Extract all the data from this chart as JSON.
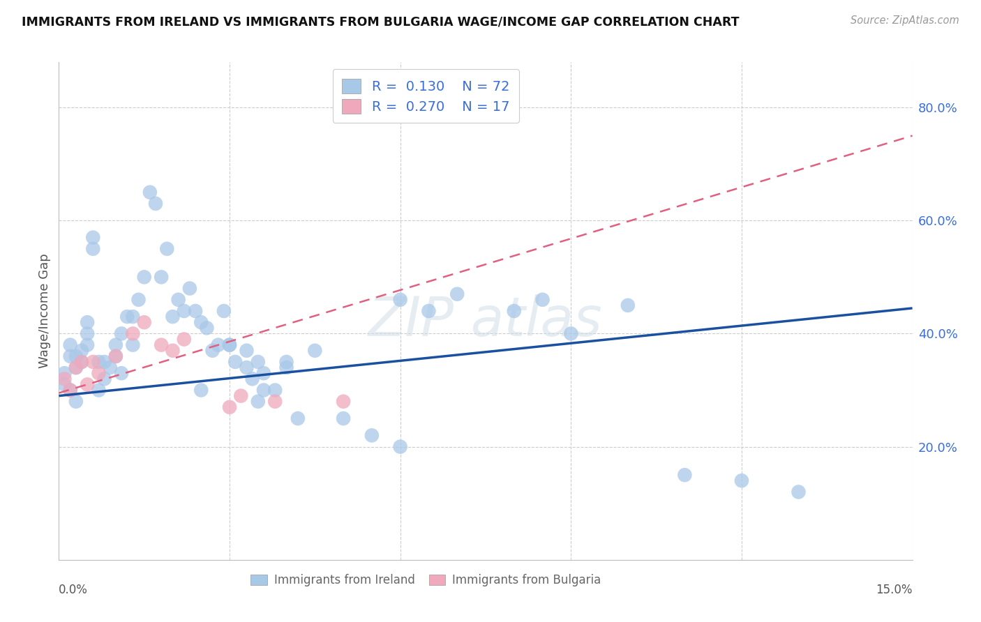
{
  "title": "IMMIGRANTS FROM IRELAND VS IMMIGRANTS FROM BULGARIA WAGE/INCOME GAP CORRELATION CHART",
  "source": "Source: ZipAtlas.com",
  "ylabel": "Wage/Income Gap",
  "yticks": [
    0.2,
    0.4,
    0.6,
    0.8
  ],
  "ytick_labels": [
    "20.0%",
    "40.0%",
    "60.0%",
    "80.0%"
  ],
  "xmin": 0.0,
  "xmax": 0.15,
  "ymin": 0.0,
  "ymax": 0.88,
  "ireland_R": 0.13,
  "ireland_N": 72,
  "bulgaria_R": 0.27,
  "bulgaria_N": 17,
  "ireland_color": "#a8c8e8",
  "bulgaria_color": "#f0a8bc",
  "ireland_line_color": "#1a50a0",
  "bulgaria_line_color": "#e06080",
  "ireland_line_y0": 0.29,
  "ireland_line_y1": 0.445,
  "bulgaria_line_y0": 0.295,
  "bulgaria_line_y1": 0.75,
  "ireland_x": [
    0.001,
    0.001,
    0.002,
    0.002,
    0.002,
    0.003,
    0.003,
    0.003,
    0.004,
    0.004,
    0.005,
    0.005,
    0.005,
    0.006,
    0.006,
    0.007,
    0.007,
    0.008,
    0.008,
    0.009,
    0.01,
    0.01,
    0.011,
    0.011,
    0.012,
    0.013,
    0.013,
    0.014,
    0.015,
    0.016,
    0.017,
    0.018,
    0.019,
    0.02,
    0.021,
    0.022,
    0.023,
    0.024,
    0.025,
    0.026,
    0.028,
    0.029,
    0.03,
    0.031,
    0.033,
    0.034,
    0.035,
    0.036,
    0.038,
    0.04,
    0.025,
    0.027,
    0.03,
    0.033,
    0.036,
    0.04,
    0.045,
    0.05,
    0.055,
    0.06,
    0.06,
    0.065,
    0.07,
    0.08,
    0.085,
    0.09,
    0.1,
    0.11,
    0.12,
    0.13,
    0.035,
    0.042
  ],
  "ireland_y": [
    0.31,
    0.33,
    0.3,
    0.36,
    0.38,
    0.28,
    0.34,
    0.36,
    0.35,
    0.37,
    0.4,
    0.38,
    0.42,
    0.55,
    0.57,
    0.3,
    0.35,
    0.32,
    0.35,
    0.34,
    0.36,
    0.38,
    0.33,
    0.4,
    0.43,
    0.38,
    0.43,
    0.46,
    0.5,
    0.65,
    0.63,
    0.5,
    0.55,
    0.43,
    0.46,
    0.44,
    0.48,
    0.44,
    0.42,
    0.41,
    0.38,
    0.44,
    0.38,
    0.35,
    0.37,
    0.32,
    0.35,
    0.3,
    0.3,
    0.34,
    0.3,
    0.37,
    0.38,
    0.34,
    0.33,
    0.35,
    0.37,
    0.25,
    0.22,
    0.2,
    0.46,
    0.44,
    0.47,
    0.44,
    0.46,
    0.4,
    0.45,
    0.15,
    0.14,
    0.12,
    0.28,
    0.25
  ],
  "bulgaria_x": [
    0.001,
    0.002,
    0.003,
    0.004,
    0.005,
    0.006,
    0.007,
    0.01,
    0.013,
    0.015,
    0.018,
    0.02,
    0.022,
    0.03,
    0.032,
    0.038,
    0.05
  ],
  "bulgaria_y": [
    0.32,
    0.3,
    0.34,
    0.35,
    0.31,
    0.35,
    0.33,
    0.36,
    0.4,
    0.42,
    0.38,
    0.37,
    0.39,
    0.27,
    0.29,
    0.28,
    0.28
  ]
}
